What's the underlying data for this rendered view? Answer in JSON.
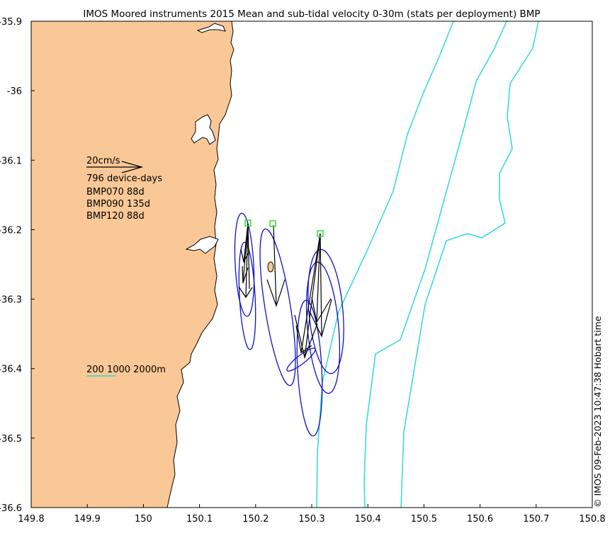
{
  "title": "IMOS Moored instruments 2015 Mean and sub-tidal velocity 0-30m (stats per deployment) BMP",
  "credit": "© IMOS 09-Feb-2023 10:47:38 Hobart time",
  "colors": {
    "land": "#f9c896",
    "coast": "#000000",
    "isobath": "#2ed8d8",
    "ellipse": "#1010c8",
    "vector": "#000000",
    "station": "#33dd33"
  },
  "axes": {
    "x_ticks": [
      "149.8",
      "149.9",
      "150",
      "150.1",
      "150.2",
      "150.3",
      "150.4",
      "150.5",
      "150.6",
      "150.7",
      "150.8"
    ],
    "y_ticks": [
      "-35.9",
      "-36",
      "-36.1",
      "-36.2",
      "-36.3",
      "-36.4",
      "-36.5",
      "-36.6"
    ]
  },
  "legend": {
    "scale_label": "20cm/s",
    "device_days": "796 device-days",
    "deployments": [
      "BMP070 88d",
      "BMP090 135d",
      "BMP120 88d"
    ],
    "isobath_label": "200 1000 2000m"
  },
  "chart_data": {
    "type": "map",
    "xlim": [
      149.8,
      150.8
    ],
    "ylim": [
      -36.6,
      -35.9
    ],
    "stations": [
      {
        "name": "BMP070",
        "lon": 150.188,
        "lat": -36.192,
        "days": 88
      },
      {
        "name": "BMP090",
        "lon": 150.233,
        "lat": -36.193,
        "days": 135
      },
      {
        "name": "BMP120",
        "lon": 150.315,
        "lat": -36.206,
        "days": 88
      }
    ]
  }
}
